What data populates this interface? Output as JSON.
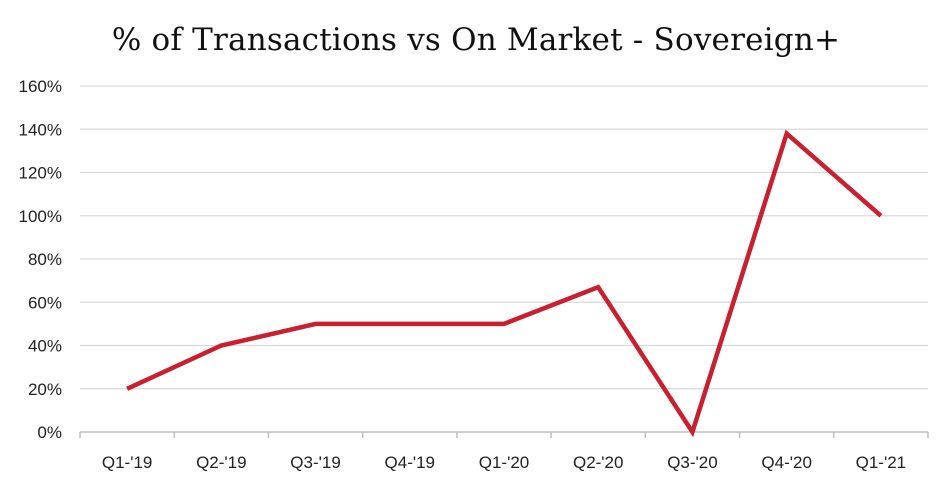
{
  "chart_data": {
    "type": "line",
    "title": "% of Transactions vs On Market - Sovereign+",
    "xlabel": "",
    "ylabel": "",
    "categories": [
      "Q1-'19",
      "Q2-'19",
      "Q3-'19",
      "Q4-'19",
      "Q1-'20",
      "Q2-'20",
      "Q3-'20",
      "Q4-'20",
      "Q1-'21"
    ],
    "series": [
      {
        "values": [
          20,
          40,
          50,
          50,
          50,
          67,
          0,
          138,
          100
        ],
        "color": "#c8202f"
      }
    ],
    "ylim": [
      0,
      160
    ],
    "yticks": [
      0,
      20,
      40,
      60,
      80,
      100,
      120,
      140,
      160
    ],
    "ytick_labels": [
      "0%",
      "20%",
      "40%",
      "60%",
      "80%",
      "100%",
      "120%",
      "140%",
      "160%"
    ],
    "grid": true,
    "gridline_color": "#d9d9d9",
    "legend": "none"
  }
}
